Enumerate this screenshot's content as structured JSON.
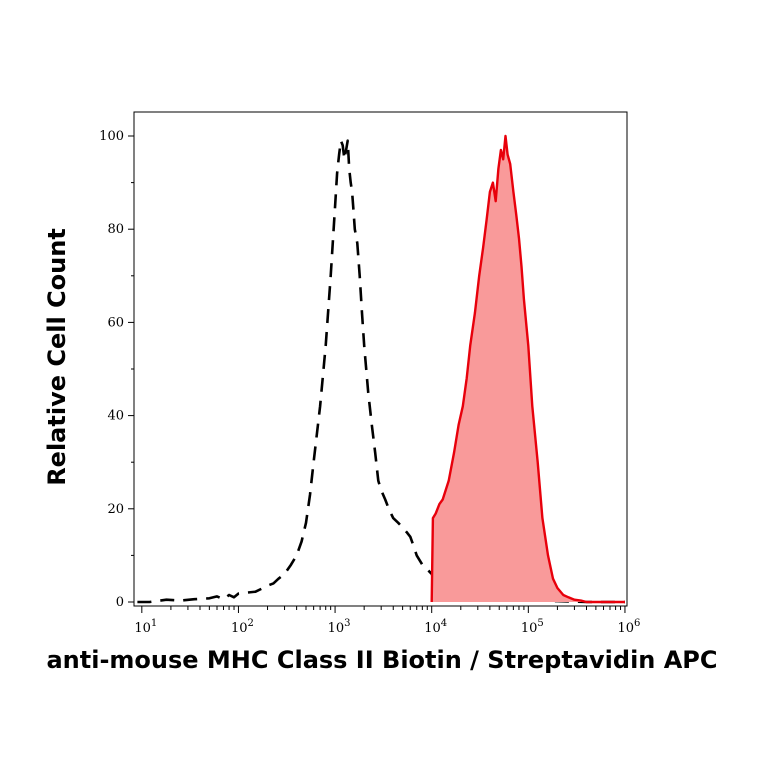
{
  "chart_data": {
    "type": "area",
    "title": "",
    "xlabel": "anti-mouse MHC Class II Biotin / Streptavidin APC",
    "ylabel": "Relative Cell Count",
    "x_scale": "log",
    "xlim": [
      10,
      1000000
    ],
    "ylim": [
      0,
      100
    ],
    "grid": false,
    "x_ticks": [
      {
        "value": 10,
        "base": "10",
        "exp": "1"
      },
      {
        "value": 100,
        "base": "10",
        "exp": "2"
      },
      {
        "value": 1000,
        "base": "10",
        "exp": "3"
      },
      {
        "value": 10000,
        "base": "10",
        "exp": "4"
      },
      {
        "value": 100000,
        "base": "10",
        "exp": "5"
      },
      {
        "value": 1000000,
        "base": "10",
        "exp": "6"
      }
    ],
    "y_ticks": [
      "0",
      "20",
      "40",
      "60",
      "80",
      "100"
    ],
    "series": [
      {
        "style": "dashed-line",
        "color": "#000000",
        "x": [
          9,
          12,
          18,
          25,
          35,
          50,
          60,
          70,
          80,
          90,
          100,
          120,
          150,
          180,
          200,
          230,
          260,
          300,
          350,
          400,
          450,
          500,
          550,
          600,
          700,
          800,
          900,
          1000,
          1050,
          1100,
          1150,
          1200,
          1250,
          1300,
          1350,
          1400,
          1450,
          1500,
          1550,
          1600,
          1700,
          1800,
          1900,
          2000,
          2100,
          2200,
          2400,
          2600,
          2800,
          3000,
          3300,
          3600,
          4000,
          4500,
          5000,
          5500,
          6000,
          6500,
          7000,
          8000,
          9000,
          10000,
          11000,
          12000,
          15000,
          20000,
          30000,
          50000,
          100000,
          200000,
          400000,
          1000000
        ],
        "values": [
          0,
          0,
          0.5,
          0.3,
          0.6,
          0.8,
          1.2,
          0.6,
          1.5,
          1,
          1.8,
          2,
          2.2,
          3,
          3.5,
          4,
          5,
          6,
          8,
          10,
          13,
          17,
          23,
          30,
          42,
          55,
          70,
          85,
          92,
          96,
          99,
          98,
          95,
          97,
          99,
          93,
          90,
          88,
          84,
          80,
          77,
          70,
          62,
          55,
          50,
          45,
          38,
          32,
          26,
          24,
          22,
          20,
          18,
          17,
          16,
          15,
          14,
          12,
          10,
          8,
          7,
          6,
          4,
          3,
          2,
          1.5,
          1,
          0.8,
          0.4,
          0.2,
          0,
          0
        ]
      },
      {
        "style": "filled",
        "color": "#e8000b",
        "fill": "#f99a9a",
        "x": [
          10000,
          10300,
          11000,
          12000,
          13000,
          15000,
          17000,
          19000,
          21000,
          23000,
          25000,
          28000,
          31000,
          34000,
          37000,
          40000,
          43000,
          46000,
          49000,
          52000,
          55000,
          58000,
          61000,
          65000,
          70000,
          75000,
          80000,
          85000,
          90000,
          100000,
          110000,
          125000,
          140000,
          160000,
          180000,
          200000,
          230000,
          260000,
          300000,
          350000,
          400000,
          600000,
          1000000
        ],
        "values": [
          0,
          18,
          19,
          21,
          22,
          26,
          32,
          38,
          42,
          48,
          55,
          62,
          70,
          76,
          82,
          88,
          90,
          86,
          93,
          97,
          95,
          100,
          96,
          94,
          88,
          83,
          78,
          72,
          65,
          55,
          42,
          30,
          18,
          10,
          5,
          3,
          1.5,
          1,
          0.5,
          0.3,
          0,
          0,
          0
        ]
      }
    ]
  }
}
